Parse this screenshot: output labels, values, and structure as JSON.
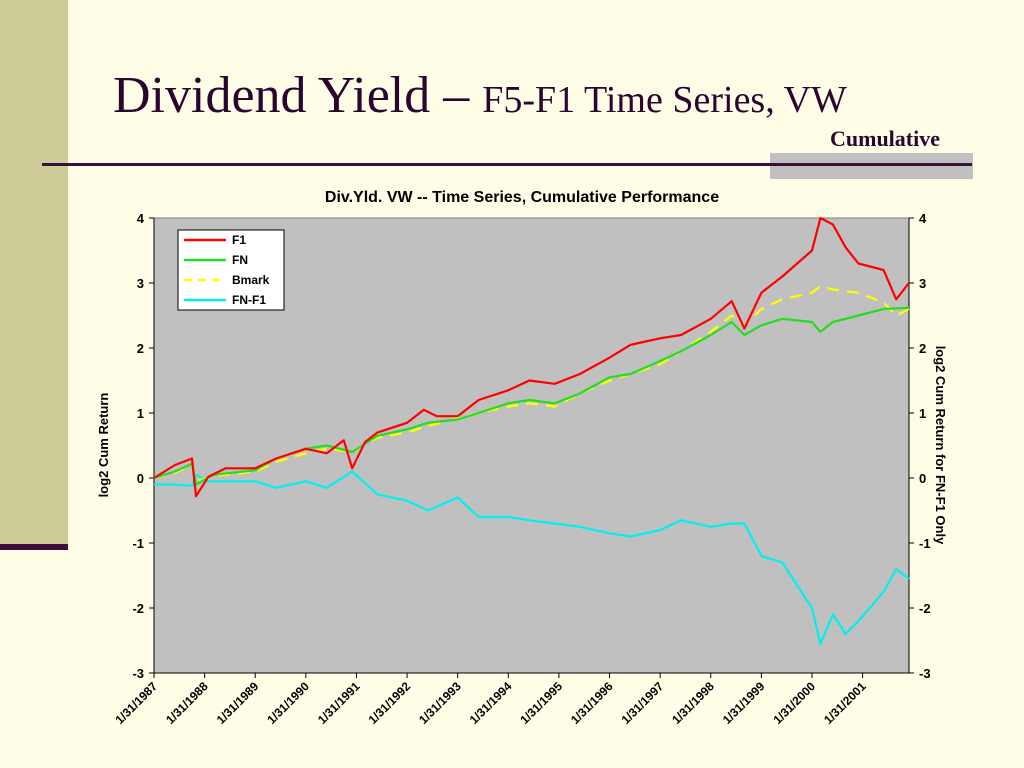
{
  "slide": {
    "title_main": "Dividend Yield – ",
    "title_rest": "F5-F1 Time Series, VW",
    "subtitle": "Cumulative"
  },
  "colors": {
    "background": "#FFFDE5",
    "band": "#CDCC99",
    "accent": "#3B0E3B",
    "plot_bg": "#C0C0C0"
  },
  "chart_data": {
    "type": "line",
    "title": "Div.Yld. VW -- Time Series, Cumulative Performance",
    "ylabel": "log2 Cum Return",
    "y2label": "log2 Cum Return for FN-F1 Only",
    "ylim": [
      -3,
      4
    ],
    "y2lim": [
      -3,
      4
    ],
    "yticks": [
      "-3",
      "-2",
      "-1",
      "0",
      "1",
      "2",
      "3",
      "4"
    ],
    "y2ticks": [
      "-3",
      "-2",
      "-1",
      "0",
      "1",
      "2",
      "3",
      "4"
    ],
    "xlim": [
      "1/31/1987",
      "12/31/2001"
    ],
    "xticks": [
      "1/31/1987",
      "1/31/1988",
      "1/31/1989",
      "1/31/1990",
      "1/31/1991",
      "1/31/1992",
      "1/31/1993",
      "1/31/1994",
      "1/31/1995",
      "1/31/1996",
      "1/31/1997",
      "1/31/1998",
      "1/31/1999",
      "1/31/2000",
      "1/31/2001"
    ],
    "grid": false,
    "legend_position": "top-left",
    "series": [
      {
        "name": "F1",
        "color": "#FF0000",
        "dash": "none",
        "points": [
          [
            "1/31/1987",
            0
          ],
          [
            "6/30/1987",
            0.2
          ],
          [
            "10/31/1987",
            0.3
          ],
          [
            "11/30/1987",
            -0.28
          ],
          [
            "2/28/1988",
            0.02
          ],
          [
            "6/30/1988",
            0.15
          ],
          [
            "1/31/1989",
            0.15
          ],
          [
            "6/30/1989",
            0.3
          ],
          [
            "1/31/1990",
            0.45
          ],
          [
            "6/30/1990",
            0.38
          ],
          [
            "10/31/1990",
            0.58
          ],
          [
            "12/31/1990",
            0.15
          ],
          [
            "3/31/1991",
            0.55
          ],
          [
            "6/30/1991",
            0.7
          ],
          [
            "1/31/1992",
            0.85
          ],
          [
            "5/31/1992",
            1.05
          ],
          [
            "8/31/1992",
            0.95
          ],
          [
            "1/31/1993",
            0.95
          ],
          [
            "6/30/1993",
            1.2
          ],
          [
            "1/31/1994",
            1.35
          ],
          [
            "6/30/1994",
            1.5
          ],
          [
            "12/31/1994",
            1.45
          ],
          [
            "6/30/1995",
            1.6
          ],
          [
            "1/31/1996",
            1.85
          ],
          [
            "6/30/1996",
            2.05
          ],
          [
            "1/31/1997",
            2.15
          ],
          [
            "6/30/1997",
            2.2
          ],
          [
            "1/31/1998",
            2.45
          ],
          [
            "6/30/1998",
            2.72
          ],
          [
            "9/30/1998",
            2.3
          ],
          [
            "1/31/1999",
            2.85
          ],
          [
            "6/30/1999",
            3.1
          ],
          [
            "1/31/2000",
            3.5
          ],
          [
            "3/31/2000",
            4.0
          ],
          [
            "6/30/2000",
            3.9
          ],
          [
            "9/30/2000",
            3.55
          ],
          [
            "12/31/2000",
            3.3
          ],
          [
            "6/30/2001",
            3.2
          ],
          [
            "9/30/2001",
            2.75
          ],
          [
            "12/31/2001",
            3.0
          ]
        ]
      },
      {
        "name": "FN",
        "color": "#22DD22",
        "dash": "none",
        "points": [
          [
            "1/31/1987",
            0
          ],
          [
            "6/30/1987",
            0.1
          ],
          [
            "10/31/1987",
            0.22
          ],
          [
            "11/30/1987",
            -0.1
          ],
          [
            "3/31/1988",
            0.05
          ],
          [
            "1/31/1989",
            0.12
          ],
          [
            "6/30/1989",
            0.3
          ],
          [
            "1/31/1990",
            0.45
          ],
          [
            "6/30/1990",
            0.5
          ],
          [
            "12/31/1990",
            0.4
          ],
          [
            "6/30/1991",
            0.65
          ],
          [
            "1/31/1992",
            0.75
          ],
          [
            "6/30/1992",
            0.85
          ],
          [
            "1/31/1993",
            0.9
          ],
          [
            "6/30/1993",
            1.0
          ],
          [
            "1/31/1994",
            1.15
          ],
          [
            "6/30/1994",
            1.2
          ],
          [
            "12/31/1994",
            1.15
          ],
          [
            "6/30/1995",
            1.3
          ],
          [
            "1/31/1996",
            1.55
          ],
          [
            "6/30/1996",
            1.6
          ],
          [
            "1/31/1997",
            1.8
          ],
          [
            "6/30/1997",
            1.95
          ],
          [
            "1/31/1998",
            2.2
          ],
          [
            "6/30/1998",
            2.4
          ],
          [
            "9/30/1998",
            2.2
          ],
          [
            "1/31/1999",
            2.35
          ],
          [
            "6/30/1999",
            2.45
          ],
          [
            "1/31/2000",
            2.4
          ],
          [
            "3/31/2000",
            2.25
          ],
          [
            "6/30/2000",
            2.4
          ],
          [
            "12/31/2000",
            2.5
          ],
          [
            "6/30/2001",
            2.6
          ],
          [
            "12/31/2001",
            2.62
          ]
        ]
      },
      {
        "name": "Bmark",
        "color": "#FFFF00",
        "dash": "12,8",
        "points": [
          [
            "1/31/1987",
            0
          ],
          [
            "6/30/1987",
            0.08
          ],
          [
            "10/31/1987",
            0.2
          ],
          [
            "11/30/1987",
            -0.05
          ],
          [
            "3/31/1988",
            0.03
          ],
          [
            "1/31/1989",
            0.1
          ],
          [
            "6/30/1989",
            0.25
          ],
          [
            "1/31/1990",
            0.38
          ],
          [
            "6/30/1990",
            0.45
          ],
          [
            "12/31/1990",
            0.4
          ],
          [
            "6/30/1991",
            0.62
          ],
          [
            "1/31/1992",
            0.7
          ],
          [
            "6/30/1992",
            0.8
          ],
          [
            "1/31/1993",
            0.92
          ],
          [
            "6/30/1993",
            1.0
          ],
          [
            "1/31/1994",
            1.1
          ],
          [
            "6/30/1994",
            1.15
          ],
          [
            "12/31/1994",
            1.1
          ],
          [
            "6/30/1995",
            1.3
          ],
          [
            "1/31/1996",
            1.5
          ],
          [
            "6/30/1996",
            1.6
          ],
          [
            "1/31/1997",
            1.75
          ],
          [
            "6/30/1997",
            1.95
          ],
          [
            "1/31/1998",
            2.25
          ],
          [
            "6/30/1998",
            2.5
          ],
          [
            "9/30/1998",
            2.35
          ],
          [
            "1/31/1999",
            2.6
          ],
          [
            "6/30/1999",
            2.75
          ],
          [
            "1/31/2000",
            2.85
          ],
          [
            "3/31/2000",
            2.95
          ],
          [
            "6/30/2000",
            2.9
          ],
          [
            "12/31/2000",
            2.85
          ],
          [
            "6/30/2001",
            2.7
          ],
          [
            "9/30/2001",
            2.5
          ],
          [
            "12/31/2001",
            2.6
          ]
        ]
      },
      {
        "name": "FN-F1",
        "color": "#00F0F0",
        "dash": "none",
        "points": [
          [
            "1/31/1987",
            -0.1
          ],
          [
            "6/30/1987",
            -0.1
          ],
          [
            "10/31/1987",
            -0.12
          ],
          [
            "11/30/1987",
            0.05
          ],
          [
            "2/28/1988",
            -0.05
          ],
          [
            "1/31/1989",
            -0.05
          ],
          [
            "6/30/1989",
            -0.15
          ],
          [
            "1/31/1990",
            -0.05
          ],
          [
            "6/30/1990",
            -0.15
          ],
          [
            "12/31/1990",
            0.1
          ],
          [
            "6/30/1991",
            -0.25
          ],
          [
            "1/31/1992",
            -0.35
          ],
          [
            "6/30/1992",
            -0.5
          ],
          [
            "1/31/1993",
            -0.3
          ],
          [
            "6/30/1993",
            -0.6
          ],
          [
            "1/31/1994",
            -0.6
          ],
          [
            "6/30/1994",
            -0.65
          ],
          [
            "12/31/1994",
            -0.7
          ],
          [
            "6/30/1995",
            -0.75
          ],
          [
            "1/31/1996",
            -0.85
          ],
          [
            "6/30/1996",
            -0.9
          ],
          [
            "1/31/1997",
            -0.8
          ],
          [
            "6/30/1997",
            -0.65
          ],
          [
            "1/31/1998",
            -0.75
          ],
          [
            "6/30/1998",
            -0.7
          ],
          [
            "9/30/1998",
            -0.7
          ],
          [
            "1/31/1999",
            -1.2
          ],
          [
            "6/30/1999",
            -1.3
          ],
          [
            "1/31/2000",
            -2.0
          ],
          [
            "3/31/2000",
            -2.55
          ],
          [
            "6/30/2000",
            -2.1
          ],
          [
            "9/30/2000",
            -2.4
          ],
          [
            "12/31/2000",
            -2.2
          ],
          [
            "6/30/2001",
            -1.75
          ],
          [
            "9/30/2001",
            -1.4
          ],
          [
            "12/31/2001",
            -1.55
          ]
        ]
      }
    ]
  }
}
